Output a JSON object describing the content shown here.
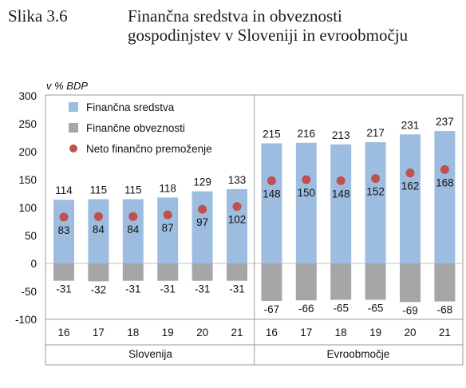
{
  "figure": {
    "number": "Slika 3.6",
    "title_line1": "Finančna sredstva in obveznosti",
    "title_line2": "gospodinjstev v Sloveniji in evroobmočju"
  },
  "chart_data": {
    "type": "bar",
    "ylabel": "v % BDP",
    "ylim": [
      -100,
      300
    ],
    "yticks": [
      -100,
      -50,
      0,
      50,
      100,
      150,
      200,
      250,
      300
    ],
    "groups": [
      {
        "name": "Slovenija",
        "categories": [
          "16",
          "17",
          "18",
          "19",
          "20",
          "21"
        ]
      },
      {
        "name": "Evroobmočje",
        "categories": [
          "16",
          "17",
          "18",
          "19",
          "20",
          "21"
        ]
      }
    ],
    "series": [
      {
        "name": "Finančna sredstva",
        "type": "bar",
        "color": "#9dbde0",
        "values": [
          114,
          115,
          115,
          118,
          129,
          133,
          215,
          216,
          213,
          217,
          231,
          237
        ]
      },
      {
        "name": "Finančne obveznosti",
        "type": "bar",
        "color": "#a6a6a6",
        "values": [
          -31,
          -32,
          -31,
          -31,
          -31,
          -31,
          -67,
          -66,
          -65,
          -65,
          -69,
          -68
        ]
      },
      {
        "name": "Neto finančno premoženje",
        "type": "scatter",
        "color": "#c0504d",
        "values": [
          83,
          84,
          84,
          87,
          97,
          102,
          148,
          150,
          148,
          152,
          162,
          168
        ]
      }
    ],
    "legend_position": "top-left",
    "grid": false
  }
}
